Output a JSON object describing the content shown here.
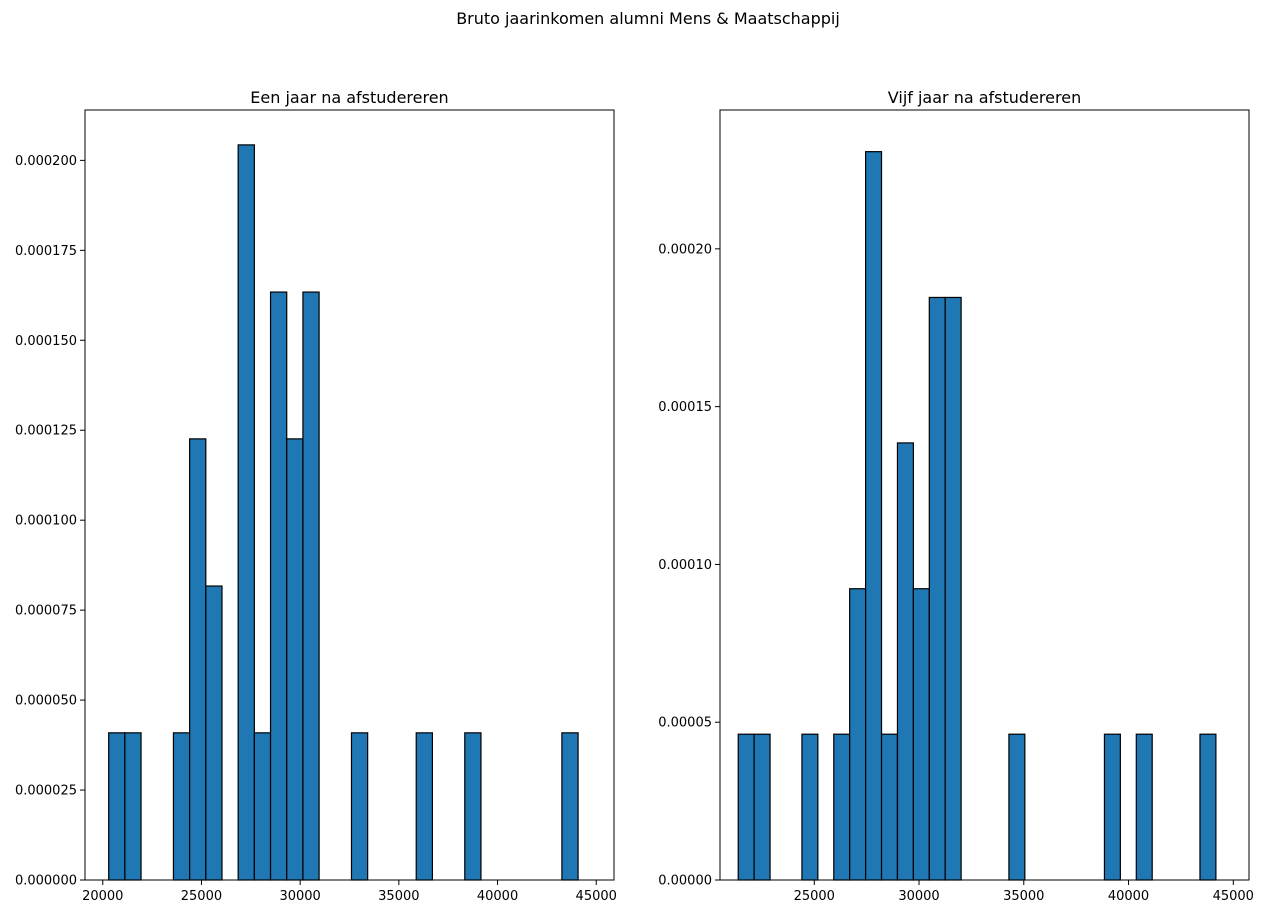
{
  "suptitle": "Bruto jaarinkomen alumni Mens & Maatschappij",
  "colors": {
    "bar_fill": "#1f77b4",
    "bar_edge": "#000000"
  },
  "chart_data": [
    {
      "type": "bar",
      "title": "Een jaar na afstudereren",
      "xlim": [
        19100,
        45900
      ],
      "ylim": [
        0,
        0.000214
      ],
      "xticks": [
        20000,
        25000,
        30000,
        35000,
        40000,
        45000
      ],
      "xtick_labels": [
        "20000",
        "25000",
        "30000",
        "35000",
        "40000",
        "45000"
      ],
      "yticks": [
        0,
        2.5e-05,
        5e-05,
        7.5e-05,
        0.0001,
        0.000125,
        0.00015,
        0.000175,
        0.0002
      ],
      "ytick_labels": [
        "0.000000",
        "0.000025",
        "0.000050",
        "0.000075",
        "0.000100",
        "0.000125",
        "0.000150",
        "0.000175",
        "0.000200"
      ],
      "grid": false,
      "bins": [
        {
          "x0": 20300,
          "x1": 21120,
          "value": 4.09e-05
        },
        {
          "x0": 21120,
          "x1": 21940,
          "value": 4.09e-05
        },
        {
          "x0": 23580,
          "x1": 24400,
          "value": 4.09e-05
        },
        {
          "x0": 24400,
          "x1": 25220,
          "value": 0.0001226
        },
        {
          "x0": 25220,
          "x1": 26040,
          "value": 8.17e-05
        },
        {
          "x0": 26860,
          "x1": 27680,
          "value": 0.0002043
        },
        {
          "x0": 27680,
          "x1": 28500,
          "value": 4.09e-05
        },
        {
          "x0": 28500,
          "x1": 29320,
          "value": 0.0001634
        },
        {
          "x0": 29320,
          "x1": 30140,
          "value": 0.0001226
        },
        {
          "x0": 30140,
          "x1": 30960,
          "value": 0.0001634
        },
        {
          "x0": 32600,
          "x1": 33420,
          "value": 4.09e-05
        },
        {
          "x0": 35880,
          "x1": 36700,
          "value": 4.09e-05
        },
        {
          "x0": 38340,
          "x1": 39160,
          "value": 4.09e-05
        },
        {
          "x0": 43260,
          "x1": 44080,
          "value": 4.09e-05
        }
      ]
    },
    {
      "type": "bar",
      "title": "Vijf jaar na afstudereren",
      "xlim": [
        20500,
        45750
      ],
      "ylim": [
        0,
        0.000244
      ],
      "xticks": [
        25000,
        30000,
        35000,
        40000,
        45000
      ],
      "xtick_labels": [
        "25000",
        "30000",
        "35000",
        "40000",
        "45000"
      ],
      "yticks": [
        0,
        5e-05,
        0.0001,
        0.00015,
        0.0002
      ],
      "ytick_labels": [
        "0.00000",
        "0.00005",
        "0.00010",
        "0.00015",
        "0.00020"
      ],
      "grid": false,
      "bins": [
        {
          "x0": 21370,
          "x1": 22130,
          "value": 4.62e-05
        },
        {
          "x0": 22130,
          "x1": 22890,
          "value": 4.62e-05
        },
        {
          "x0": 24410,
          "x1": 25170,
          "value": 4.62e-05
        },
        {
          "x0": 25930,
          "x1": 26690,
          "value": 4.62e-05
        },
        {
          "x0": 26690,
          "x1": 27450,
          "value": 9.23e-05
        },
        {
          "x0": 27450,
          "x1": 28210,
          "value": 0.0002308
        },
        {
          "x0": 28210,
          "x1": 28970,
          "value": 4.62e-05
        },
        {
          "x0": 28970,
          "x1": 29730,
          "value": 0.0001385
        },
        {
          "x0": 29730,
          "x1": 30490,
          "value": 9.23e-05
        },
        {
          "x0": 30490,
          "x1": 31250,
          "value": 0.0001846
        },
        {
          "x0": 31250,
          "x1": 32010,
          "value": 0.0001846
        },
        {
          "x0": 34290,
          "x1": 35050,
          "value": 4.62e-05
        },
        {
          "x0": 38850,
          "x1": 39610,
          "value": 4.62e-05
        },
        {
          "x0": 40370,
          "x1": 41130,
          "value": 4.62e-05
        },
        {
          "x0": 43410,
          "x1": 44170,
          "value": 4.62e-05
        }
      ]
    }
  ]
}
